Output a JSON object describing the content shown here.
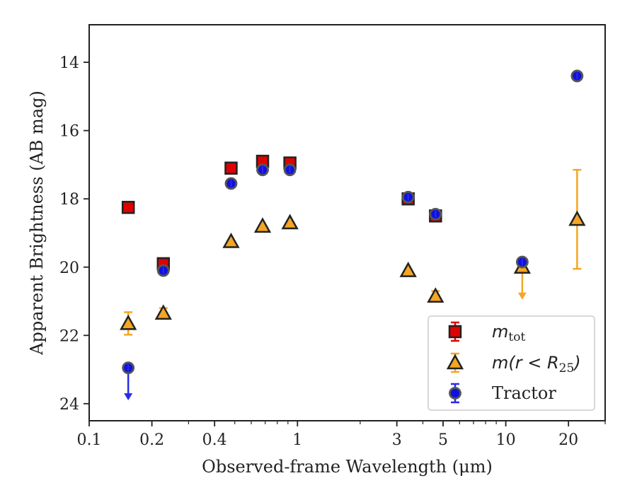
{
  "chart_data": {
    "type": "scatter",
    "xlabel": "Observed-frame Wavelength (μm)",
    "ylabel": "Apparent Brightness (AB mag)",
    "x_scale": "log",
    "xlim": [
      0.1,
      30
    ],
    "ylim": [
      24.5,
      12.9
    ],
    "y_inverted": true,
    "x_ticks": [
      0.1,
      0.2,
      0.4,
      1,
      3,
      5,
      10,
      20
    ],
    "x_tick_labels": [
      "0.1",
      "0.2",
      "0.4",
      "1",
      "3",
      "5",
      "10",
      "20"
    ],
    "y_ticks": [
      14,
      16,
      18,
      20,
      22,
      24
    ],
    "y_tick_labels": [
      "14",
      "16",
      "18",
      "20",
      "22",
      "24"
    ],
    "legend_position": "lower-right",
    "series": [
      {
        "key": "mtot",
        "name": "m_tot",
        "label_main": "m",
        "label_sub": "tot",
        "marker": "square",
        "color": "#e00000",
        "ecolor": "#e00000",
        "points": [
          {
            "x": 0.154,
            "y": 18.25,
            "err": 0.05
          },
          {
            "x": 0.227,
            "y": 19.9,
            "err": 0.05
          },
          {
            "x": 0.48,
            "y": 17.1,
            "err": 0.05
          },
          {
            "x": 0.68,
            "y": 16.9,
            "err": 0.05
          },
          {
            "x": 0.92,
            "y": 16.95,
            "err": 0.05
          },
          {
            "x": 3.4,
            "y": 18.0,
            "err": 0.05
          },
          {
            "x": 4.6,
            "y": 18.5,
            "err": 0.05
          }
        ]
      },
      {
        "key": "mr25",
        "name": "m(r<R25)",
        "label_main": "m(r < R",
        "label_sub": "25",
        "label_tail": ")",
        "marker": "triangle",
        "color": "#f5a623",
        "ecolor": "#f5a623",
        "points": [
          {
            "x": 0.154,
            "y": 21.65,
            "err": 0.33
          },
          {
            "x": 0.227,
            "y": 21.35,
            "err": 0.15
          },
          {
            "x": 0.48,
            "y": 19.25,
            "err": 0.05
          },
          {
            "x": 0.68,
            "y": 18.8,
            "err": 0.05
          },
          {
            "x": 0.92,
            "y": 18.7,
            "err": 0.05
          },
          {
            "x": 3.4,
            "y": 20.1,
            "err": 0.05
          },
          {
            "x": 4.6,
            "y": 20.85,
            "err": 0.15
          },
          {
            "x": 12.0,
            "y": 20.0,
            "upper_limit": true
          },
          {
            "x": 22.0,
            "y": 18.6,
            "err_low": 1.45,
            "err_high": 1.45
          }
        ]
      },
      {
        "key": "tractor",
        "name": "Tractor",
        "label_main": "Tractor",
        "marker": "circle",
        "color": "#1010e0",
        "ecolor": "#2a2ae8",
        "points": [
          {
            "x": 0.154,
            "y": 22.95,
            "upper_limit": true
          },
          {
            "x": 0.227,
            "y": 20.1,
            "err": 0.05
          },
          {
            "x": 0.48,
            "y": 17.55,
            "err": 0.05
          },
          {
            "x": 0.68,
            "y": 17.15,
            "err": 0.05
          },
          {
            "x": 0.92,
            "y": 17.15,
            "err": 0.05
          },
          {
            "x": 3.4,
            "y": 17.95,
            "err": 0.05
          },
          {
            "x": 4.6,
            "y": 18.45,
            "err": 0.05
          },
          {
            "x": 12.0,
            "y": 19.85,
            "err": 0.05
          },
          {
            "x": 22.0,
            "y": 14.4,
            "err": 0.05
          }
        ]
      }
    ]
  }
}
